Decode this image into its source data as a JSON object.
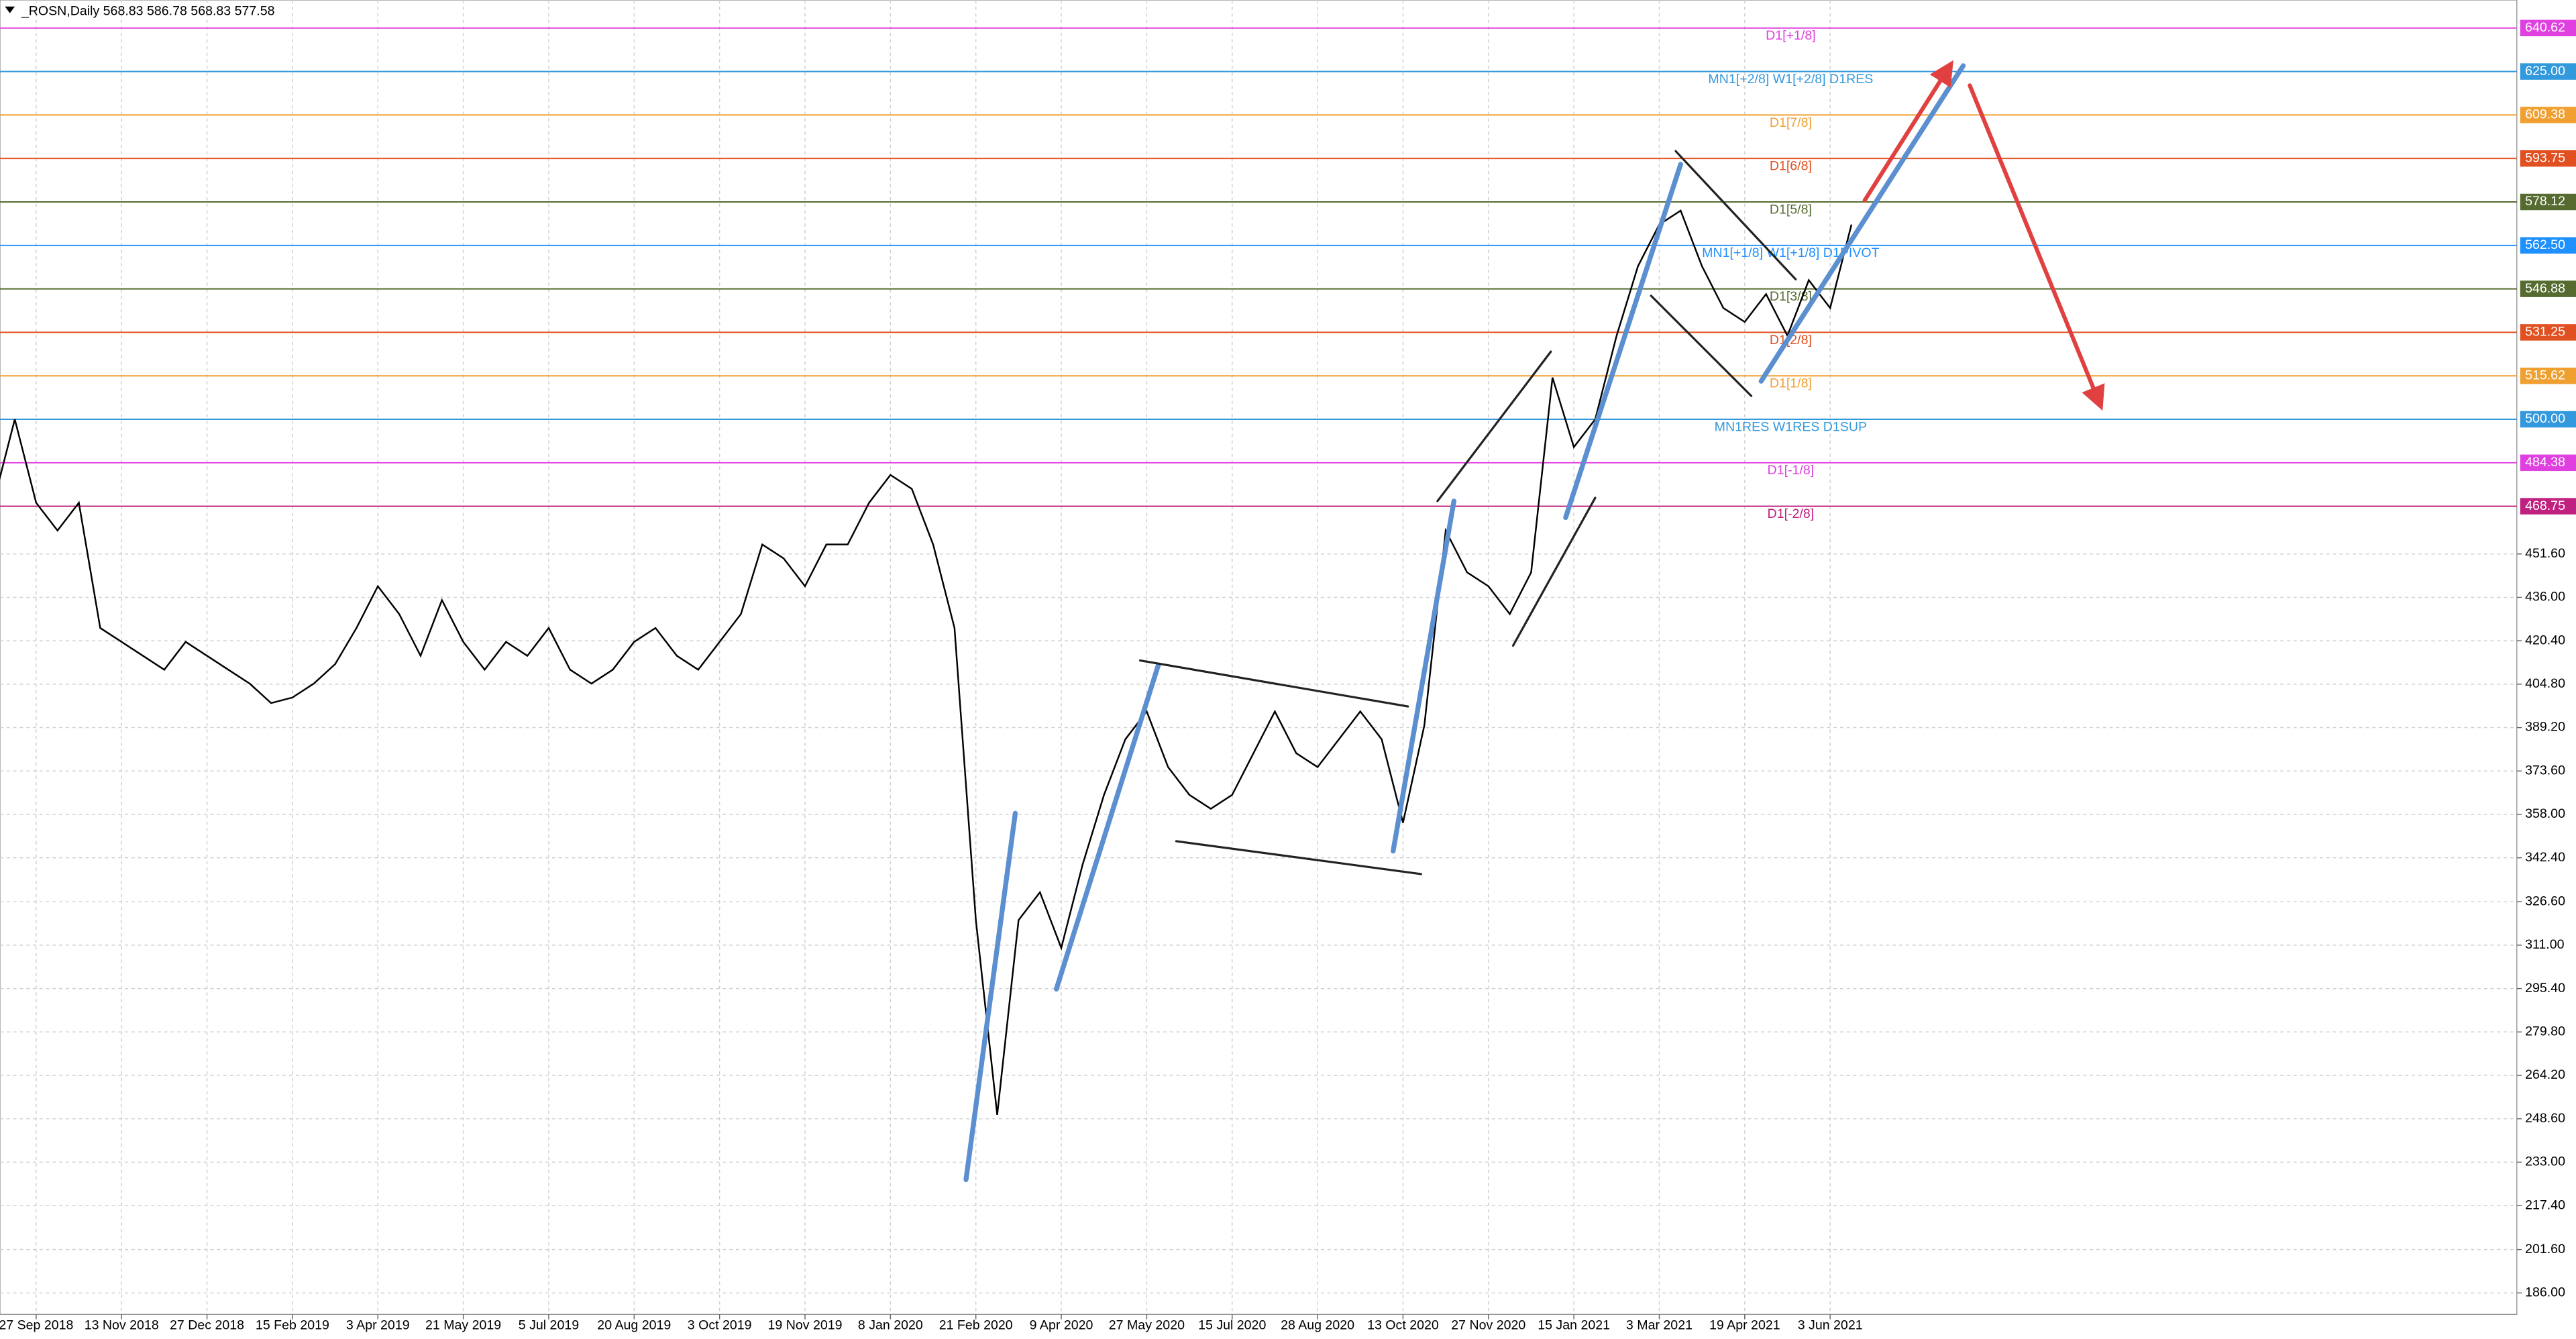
{
  "chart_data": {
    "type": "line",
    "header": "_ROSN,Daily  568.83 586.78 568.83 577.58",
    "categories": [
      null,
      null,
      "27 Sep 2018",
      null,
      null,
      null,
      "13 Nov 2018",
      null,
      null,
      null,
      "27 Dec 2018",
      null,
      null,
      null,
      "15 Feb 2019",
      null,
      null,
      null,
      "3 Apr 2019",
      null,
      null,
      null,
      "21 May 2019",
      null,
      null,
      null,
      "5 Jul 2019",
      null,
      null,
      null,
      "20 Aug 2019",
      null,
      null,
      null,
      "3 Oct 2019",
      null,
      null,
      null,
      "19 Nov 2019",
      null,
      null,
      null,
      "8 Jan 2020",
      null,
      null,
      null,
      "21 Feb 2020",
      null,
      null,
      null,
      "9 Apr 2020",
      null,
      null,
      null,
      "27 May 2020",
      null,
      null,
      null,
      "15 Jul 2020",
      null,
      null,
      null,
      "28 Aug 2020",
      null,
      null,
      null,
      "13 Oct 2020",
      null,
      null,
      null,
      "27 Nov 2020",
      null,
      null,
      null,
      "15 Jan 2021",
      null,
      null,
      null,
      "3 Mar 2021",
      null,
      null,
      null,
      "19 Apr 2021",
      null,
      null,
      null,
      "3 Jun 2021",
      null
    ],
    "series": [
      {
        "color": "#000000",
        "values": [
          470,
          500,
          470,
          460,
          470,
          425,
          420,
          415,
          410,
          420,
          415,
          410,
          405,
          398,
          400,
          405,
          412,
          425,
          440,
          430,
          415,
          435,
          420,
          410,
          420,
          415,
          425,
          410,
          405,
          410,
          420,
          425,
          415,
          410,
          420,
          430,
          455,
          450,
          440,
          455,
          455,
          470,
          480,
          475,
          455,
          425,
          320,
          250,
          320,
          330,
          310,
          340,
          365,
          385,
          395,
          375,
          365,
          360,
          365,
          380,
          395,
          380,
          375,
          385,
          395,
          385,
          355,
          390,
          460,
          445,
          440,
          430,
          445,
          515,
          490,
          500,
          530,
          555,
          570,
          575,
          555,
          540,
          535,
          545,
          530,
          550,
          540,
          570
        ]
      }
    ],
    "ylim": [
      178.3,
      650.7
    ],
    "yticks": [
      {
        "value": 186,
        "label": "186.00"
      },
      {
        "value": 201.6,
        "label": "201.60"
      },
      {
        "value": 217.4,
        "label": "217.40"
      },
      {
        "value": 233,
        "label": "233.00"
      },
      {
        "value": 248.6,
        "label": "248.60"
      },
      {
        "value": 264.2,
        "label": "264.20"
      },
      {
        "value": 279.8,
        "label": "279.80"
      },
      {
        "value": 295.4,
        "label": "295.40"
      },
      {
        "value": 311,
        "label": "311.00"
      },
      {
        "value": 326.6,
        "label": "326.60"
      },
      {
        "value": 342.4,
        "label": "342.40"
      },
      {
        "value": 358,
        "label": "358.00"
      },
      {
        "value": 373.6,
        "label": "373.60"
      },
      {
        "value": 389.2,
        "label": "389.20"
      },
      {
        "value": 404.8,
        "label": "404.80"
      },
      {
        "value": 420.4,
        "label": "420.40"
      },
      {
        "value": 436,
        "label": "436.00"
      },
      {
        "value": 451.6,
        "label": "451.60"
      }
    ],
    "grid": true,
    "levels": [
      {
        "name": "D1[+1/8]",
        "value": 640.62,
        "label": "640.62",
        "color": "#e040e0"
      },
      {
        "name": "MN1[+2/8] W1[+2/8] D1RES",
        "value": 625,
        "label": "625.00",
        "color": "#3399dd"
      },
      {
        "name": "D1[7/8]",
        "value": 609.38,
        "label": "609.38",
        "color": "#f0a030"
      },
      {
        "name": "D1[6/8]",
        "value": 593.75,
        "label": "593.75",
        "color": "#e05020"
      },
      {
        "name": "D1[5/8]",
        "value": 578.12,
        "label": "578.12",
        "color": "#556b2f"
      },
      {
        "name": "MN1[+1/8] W1[+1/8] D1PIVOT",
        "value": 562.5,
        "label": "562.50",
        "color": "#1e90ff"
      },
      {
        "name": "D1[3/8]",
        "value": 546.88,
        "label": "546.88",
        "color": "#556b2f"
      },
      {
        "name": "D1[2/8]",
        "value": 531.25,
        "label": "531.25",
        "color": "#e05020"
      },
      {
        "name": "D1[1/8]",
        "value": 515.62,
        "label": "515.62",
        "color": "#f0a030"
      },
      {
        "name": "MN1RES W1RES D1SUP",
        "value": 500,
        "label": "500.00",
        "color": "#3399dd"
      },
      {
        "name": "D1[-1/8]",
        "value": 484.38,
        "label": "484.38",
        "color": "#e040e0"
      },
      {
        "name": "D1[-2/8]",
        "value": 468.75,
        "label": "468.75",
        "color": "#c02080"
      }
    ]
  }
}
